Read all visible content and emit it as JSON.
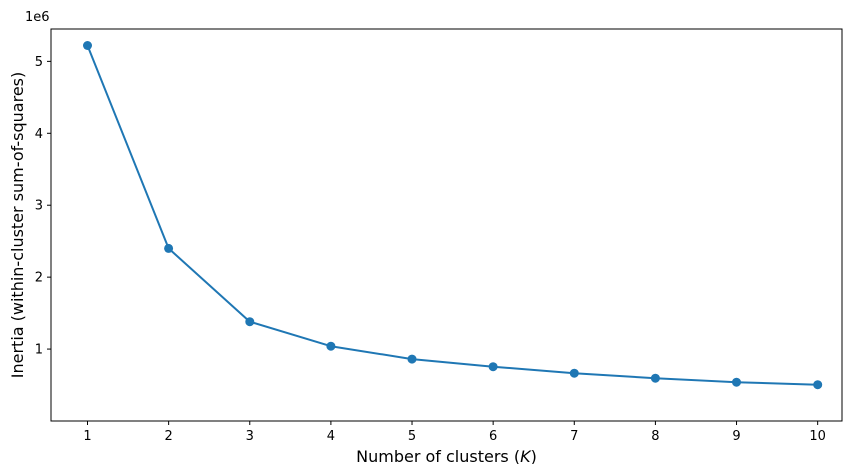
{
  "chart_data": {
    "type": "line",
    "title": "",
    "xlabel": "Number of clusters (",
    "xlabel_var": "K",
    "xlabel_end": ")",
    "ylabel": "Inertia (within-cluster sum-of-squares)",
    "y_offset_label": "1e6",
    "y_multiplier": 1000000,
    "x": [
      1,
      2,
      3,
      4,
      5,
      6,
      7,
      8,
      9,
      10
    ],
    "series": [
      {
        "values": [
          5220000,
          2400000,
          1380000,
          1040000,
          860000,
          755000,
          665000,
          595000,
          540000,
          505000
        ],
        "color": "#1f77b4"
      }
    ],
    "xlim": [
      0.55,
      10.3
    ],
    "ylim": [
      0,
      5.45
    ],
    "ylim_units": 1000000,
    "y_ticks": [
      1,
      2,
      3,
      4,
      5
    ],
    "y_tick_labels": [
      "1",
      "2",
      "3",
      "4",
      "5"
    ],
    "x_ticks": [
      1,
      2,
      3,
      4,
      5,
      6,
      7,
      8,
      9,
      10
    ],
    "x_tick_labels": [
      "1",
      "2",
      "3",
      "4",
      "5",
      "6",
      "7",
      "8",
      "9",
      "10"
    ],
    "grid": false,
    "legend": "none"
  }
}
